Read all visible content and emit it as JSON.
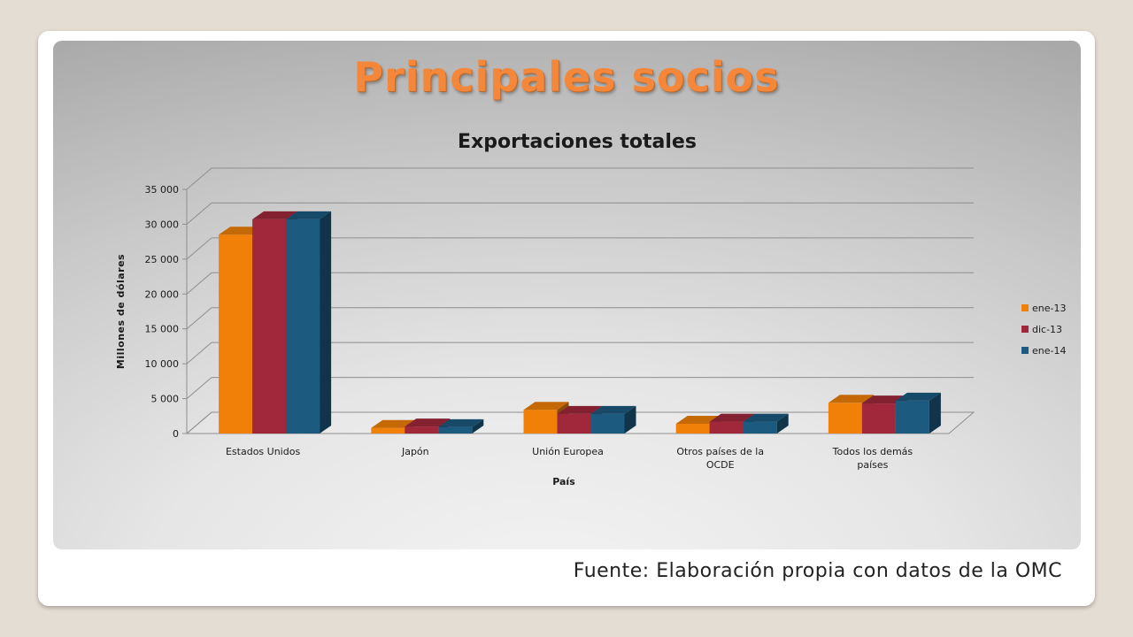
{
  "slide": {
    "title": "Principales socios",
    "source": "Fuente: Elaboración propia con datos de la OMC"
  },
  "chart_data": {
    "type": "bar",
    "title": "Exportaciones totales",
    "xlabel": "País",
    "ylabel": "Millones de dólares",
    "ylim": [
      0,
      35000
    ],
    "yticks": [
      0,
      5000,
      10000,
      15000,
      20000,
      25000,
      30000,
      35000
    ],
    "ytick_labels": [
      "0",
      "5 000",
      "10 000",
      "15 000",
      "20 000",
      "25 000",
      "30 000",
      "35 000"
    ],
    "categories": [
      "Estados Unidos",
      "Japón",
      "Unión Europea",
      "Otros países de la OCDE",
      "Todos los demás países"
    ],
    "category_lines": [
      [
        "Estados Unidos"
      ],
      [
        "Japón"
      ],
      [
        "Unión Europea"
      ],
      [
        "Otros países de la",
        "OCDE"
      ],
      [
        "Todos los demás",
        "países"
      ]
    ],
    "series": [
      {
        "name": "ene-13",
        "values": [
          28500,
          800,
          3400,
          1400,
          4400
        ]
      },
      {
        "name": "dic-13",
        "values": [
          30700,
          1000,
          2800,
          1700,
          4300
        ]
      },
      {
        "name": "ene-14",
        "values": [
          30700,
          900,
          2800,
          1700,
          4700
        ]
      }
    ],
    "colors": [
      "#f08008",
      "#a0283a",
      "#1c5a80"
    ],
    "legend_position": "right",
    "grid": true
  }
}
